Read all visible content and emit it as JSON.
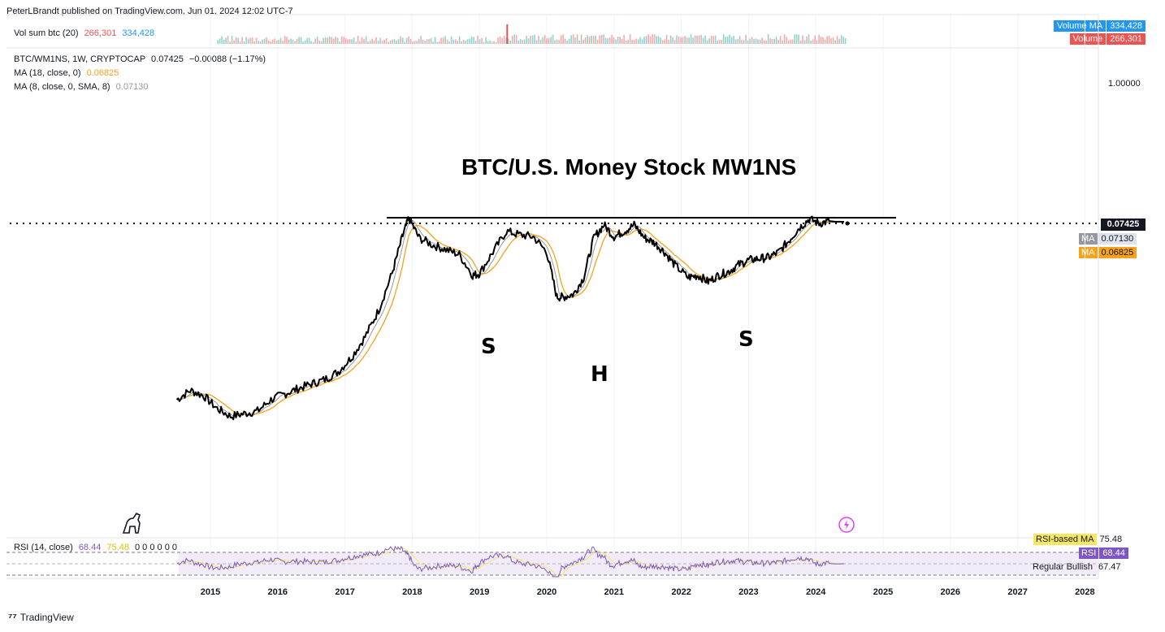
{
  "header": {
    "published": "PeterLBrandt published on TradingView.com, Jun 01, 2024 12:02 UTC-7"
  },
  "volume_legend": {
    "name": "Vol sum btc (20)",
    "vol": "266,301",
    "vol_ma": "334,428"
  },
  "volume_boxes": {
    "ma_label": "Volume MA",
    "ma_value": "334,428",
    "vol_label": "Volume",
    "vol_value": "266,301"
  },
  "main_legend": {
    "symbol": "BTC/WM1NS, 1W, CRYPTOCAP",
    "price": "0.07425",
    "change": "−0.00088 (−1.17%)",
    "ma18_name": "MA (18, close, 0)",
    "ma18_value": "0.06825",
    "ma8_name": "MA (8, close, 0, SMA, 8)",
    "ma8_value": "0.07130"
  },
  "price_axis": {
    "tick": "1.00000",
    "last": "0.07425",
    "ma8_label": "MA",
    "ma8": "0.07130",
    "ma18_label": "MA",
    "ma18": "0.06825"
  },
  "annotations": {
    "title": "BTC/U.S. Money Stock MW1NS",
    "s1": "S",
    "h": "H",
    "s2": "S"
  },
  "rsi_legend": {
    "name": "RSI (14, close)",
    "rsi": "68.44",
    "rsi_ma": "75.48",
    "zeros": "0 0 0 0 0 0"
  },
  "rsi_boxes": {
    "ma_label": "RSI-based MA",
    "ma_value": "75.48",
    "rsi_label": "RSI",
    "rsi_value": "68.44",
    "bull_label": "Regular Bullish",
    "bull_value": "67.47"
  },
  "x_axis": {
    "ticks": [
      "2015",
      "2016",
      "2017",
      "2018",
      "2019",
      "2020",
      "2021",
      "2022",
      "2023",
      "2024",
      "2025",
      "2026",
      "2027",
      "2028"
    ]
  },
  "footer": {
    "brand": "TradingView"
  },
  "colors": {
    "price": "#000000",
    "ma18": "#f7a21b",
    "ma8": "#9598a1",
    "rsi": "#7e57c2",
    "rsi_ma": "#f5e663",
    "volume": "#26a69a",
    "vol_ma": "#2196f3",
    "vol_red": "#ef5350"
  },
  "chart_data": {
    "type": "line",
    "title": "BTC/U.S. Money Stock MW1NS",
    "yscale": "log",
    "series": [
      {
        "name": "BTC/WM1NS",
        "x": [
          2014.5,
          2014.7,
          2014.9,
          2015.1,
          2015.3,
          2015.5,
          2015.7,
          2015.9,
          2016.1,
          2016.3,
          2016.5,
          2016.7,
          2016.9,
          2017.1,
          2017.3,
          2017.5,
          2017.7,
          2017.85,
          2017.95,
          2018.1,
          2018.3,
          2018.5,
          2018.7,
          2018.9,
          2019.0,
          2019.2,
          2019.4,
          2019.6,
          2019.8,
          2020.0,
          2020.15,
          2020.25,
          2020.4,
          2020.55,
          2020.7,
          2020.85,
          2021.0,
          2021.15,
          2021.3,
          2021.45,
          2021.6,
          2021.75,
          2021.9,
          2022.1,
          2022.25,
          2022.4,
          2022.55,
          2022.7,
          2022.85,
          2023.0,
          2023.15,
          2023.3,
          2023.45,
          2023.6,
          2023.75,
          2023.9,
          2024.05,
          2024.2,
          2024.3,
          2024.42
        ],
        "values": [
          0.0026,
          0.0031,
          0.0028,
          0.0022,
          0.0019,
          0.002,
          0.0021,
          0.0026,
          0.0029,
          0.0032,
          0.0035,
          0.0038,
          0.0044,
          0.0058,
          0.0085,
          0.014,
          0.028,
          0.055,
          0.08,
          0.055,
          0.048,
          0.044,
          0.04,
          0.027,
          0.028,
          0.042,
          0.062,
          0.058,
          0.056,
          0.042,
          0.018,
          0.018,
          0.019,
          0.026,
          0.055,
          0.07,
          0.056,
          0.062,
          0.07,
          0.055,
          0.05,
          0.042,
          0.033,
          0.026,
          0.027,
          0.024,
          0.027,
          0.029,
          0.033,
          0.036,
          0.037,
          0.038,
          0.042,
          0.052,
          0.066,
          0.078,
          0.072,
          0.075,
          0.0742,
          0.07425
        ]
      },
      {
        "name": "MA (18, close, 0)",
        "values": [
          0.06825
        ]
      },
      {
        "name": "MA (8, close, 0, SMA, 8)",
        "values": [
          0.0713
        ]
      },
      {
        "name": "RSI (14, close)",
        "values": [
          68.44
        ]
      }
    ],
    "resistance_level": 0.0785,
    "last_value": 0.07425
  }
}
